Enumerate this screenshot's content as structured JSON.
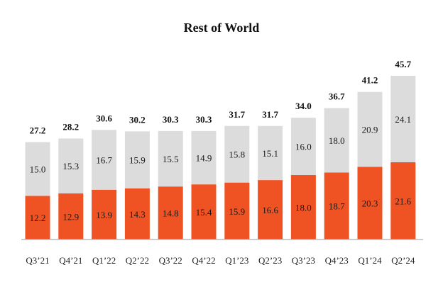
{
  "chart_data": {
    "type": "bar",
    "stacked": true,
    "title": "Rest of World",
    "categories": [
      "Q3’21",
      "Q4’21",
      "Q1’22",
      "Q2’22",
      "Q3’22",
      "Q4’22",
      "Q1’23",
      "Q2’23",
      "Q3’23",
      "Q4’23",
      "Q1’24",
      "Q2’24"
    ],
    "series": [
      {
        "color": "#f05323",
        "values": [
          12.2,
          12.9,
          13.9,
          14.3,
          14.8,
          15.4,
          15.9,
          16.6,
          18.0,
          18.7,
          20.3,
          21.6
        ]
      },
      {
        "color": "#dcdcdc",
        "values": [
          15.0,
          15.3,
          16.7,
          15.9,
          15.5,
          14.9,
          15.8,
          15.1,
          16.0,
          18.0,
          20.9,
          24.1
        ]
      }
    ],
    "totals": [
      27.2,
      28.2,
      30.6,
      30.2,
      30.3,
      30.3,
      31.7,
      31.7,
      34.0,
      36.7,
      41.2,
      45.7
    ],
    "xlabel": "",
    "ylabel": "",
    "ylim": [
      0,
      46
    ],
    "grid": false,
    "legend": "none",
    "baseline_color": "#bbbbbb"
  }
}
